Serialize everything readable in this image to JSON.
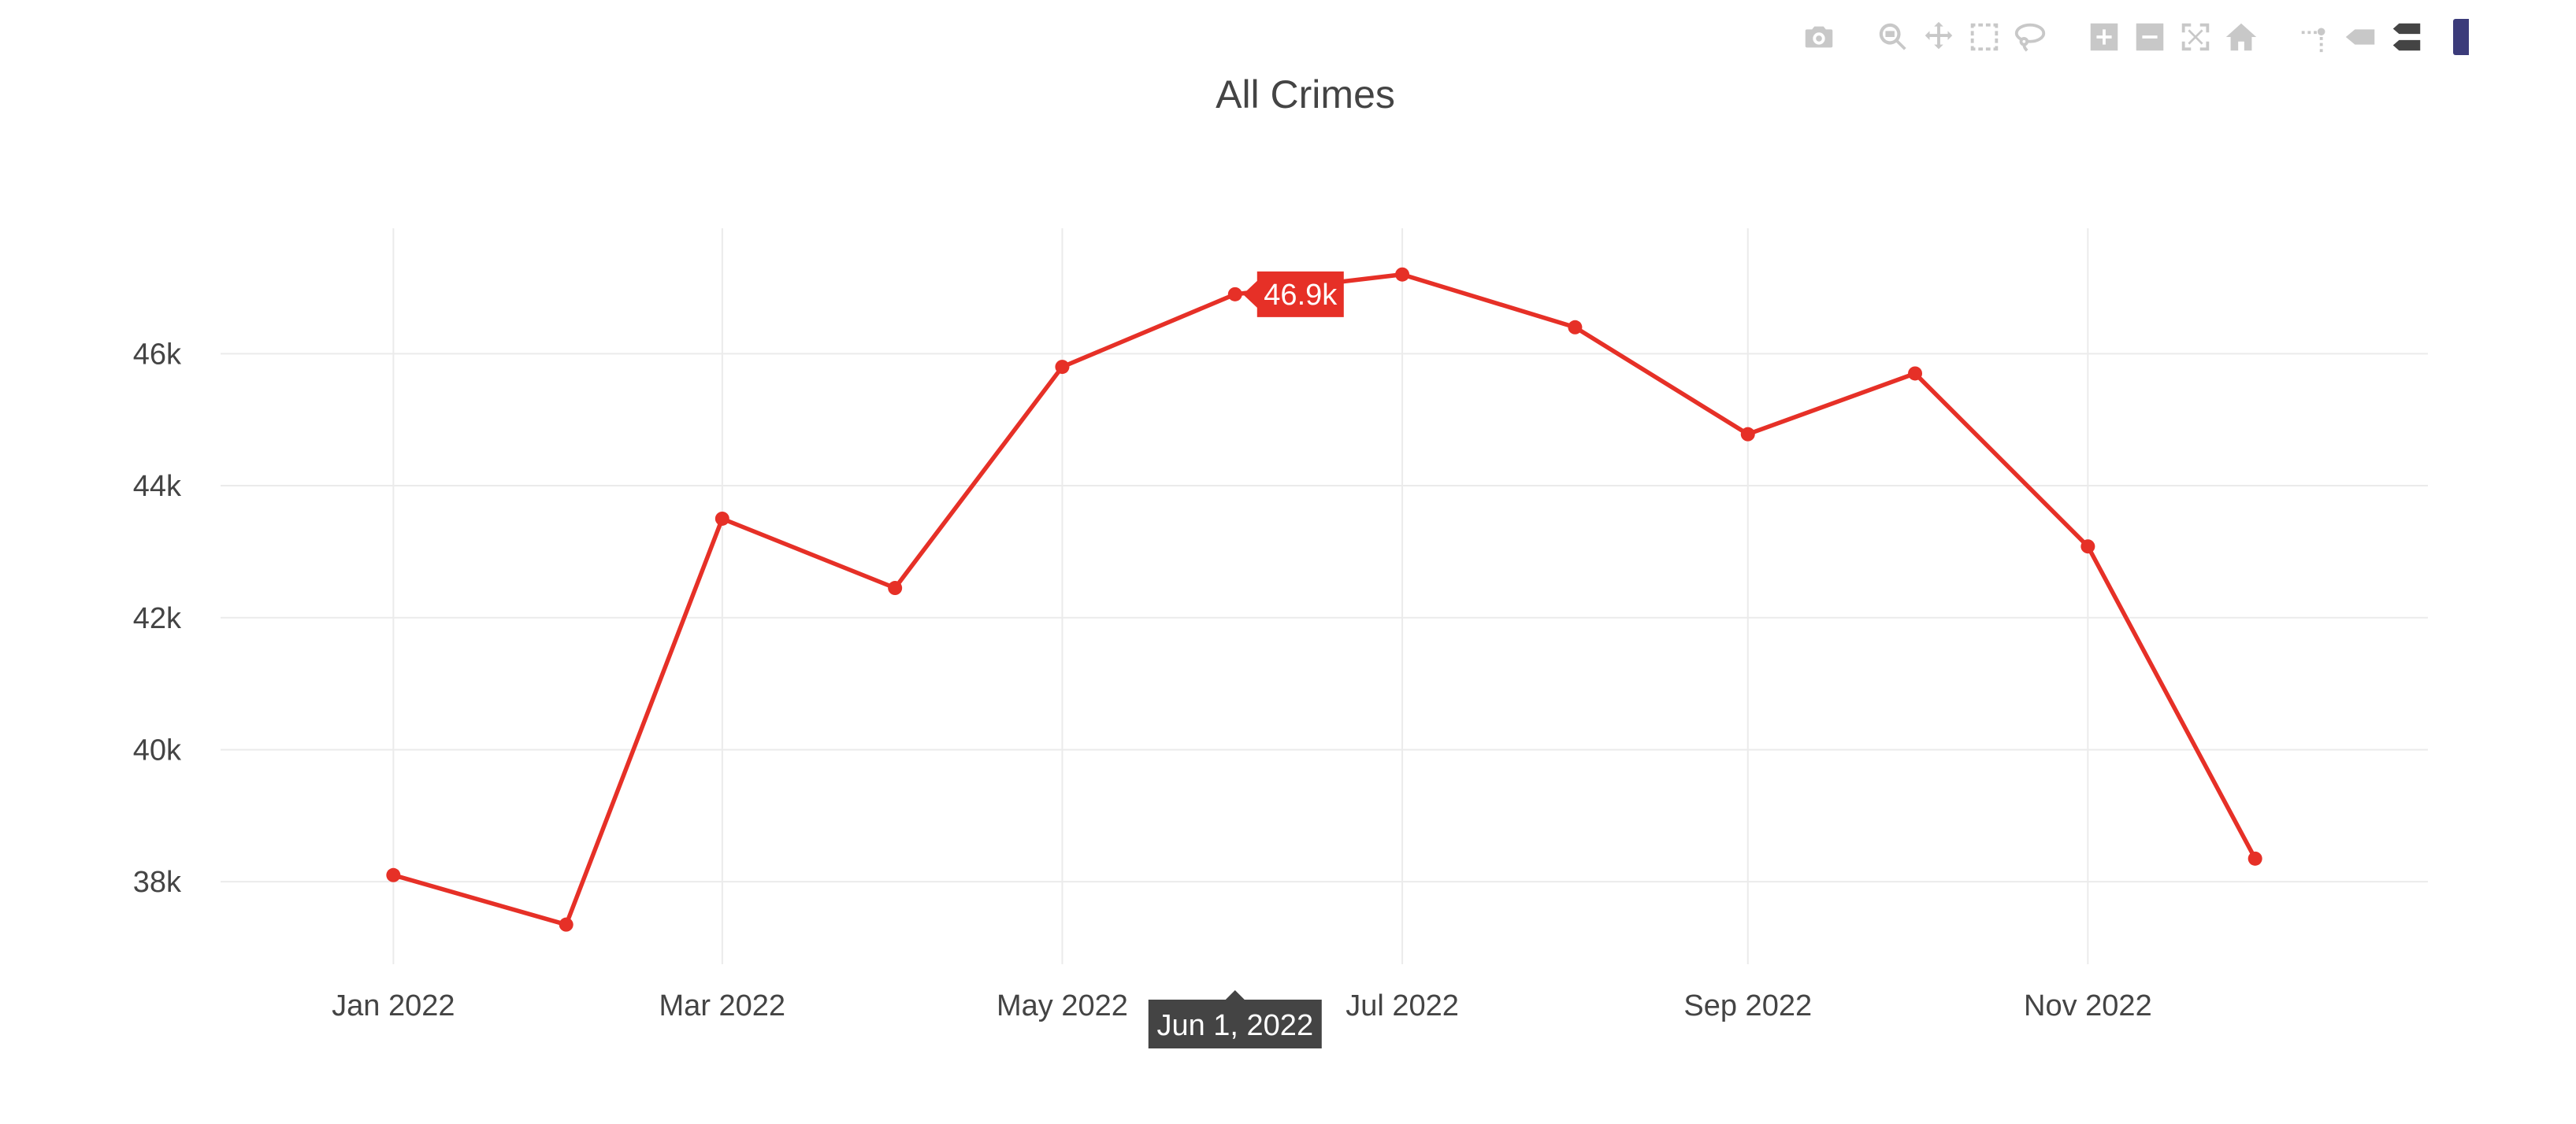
{
  "modebar": {
    "buttons": [
      {
        "icon": "camera-icon",
        "title": "Download plot as a png"
      },
      {
        "icon": "zoom-icon",
        "title": "Zoom"
      },
      {
        "icon": "pan-icon",
        "title": "Pan"
      },
      {
        "icon": "box-select-icon",
        "title": "Box Select"
      },
      {
        "icon": "lasso-select-icon",
        "title": "Lasso Select"
      },
      {
        "icon": "zoom-in-icon",
        "title": "Zoom in"
      },
      {
        "icon": "zoom-out-icon",
        "title": "Zoom out"
      },
      {
        "icon": "autoscale-icon",
        "title": "Autoscale"
      },
      {
        "icon": "reset-axes-icon",
        "title": "Reset axes"
      },
      {
        "icon": "spike-lines-icon",
        "title": "Toggle Spike Lines"
      },
      {
        "icon": "hover-closest-icon",
        "title": "Show closest data on hover"
      },
      {
        "icon": "hover-compare-icon",
        "title": "Compare data on hover"
      }
    ],
    "active_index": 11
  },
  "chart_data": {
    "type": "line",
    "title": "All Crimes",
    "xlabel": "",
    "ylabel": "",
    "x": [
      "2022-01-01",
      "2022-02-01",
      "2022-03-01",
      "2022-04-01",
      "2022-05-01",
      "2022-06-01",
      "2022-07-01",
      "2022-08-01",
      "2022-09-01",
      "2022-10-01",
      "2022-11-01",
      "2022-12-01"
    ],
    "series": [
      {
        "values": [
          38100,
          37350,
          43500,
          42450,
          45800,
          46900,
          47200,
          46400,
          44780,
          45700,
          43080,
          38350
        ]
      }
    ],
    "ylim": [
      36750,
      47900
    ],
    "yticks": [
      38000,
      40000,
      42000,
      44000,
      46000
    ],
    "ytick_labels": [
      "38k",
      "40k",
      "42k",
      "44k",
      "46k"
    ],
    "xticks": [
      "2022-01-01",
      "2022-03-01",
      "2022-05-01",
      "2022-07-01",
      "2022-09-01",
      "2022-11-01"
    ],
    "xtick_labels": [
      "Jan 2022",
      "Mar 2022",
      "May 2022",
      "Jul 2022",
      "Sep 2022",
      "Nov 2022"
    ],
    "xlim": [
      "2021-12-01",
      "2023-01-01"
    ],
    "grid": true,
    "line_color": "#e63027",
    "hover": {
      "index": 5,
      "x_label": "Jun 1, 2022",
      "y_label": "46.9k"
    }
  }
}
